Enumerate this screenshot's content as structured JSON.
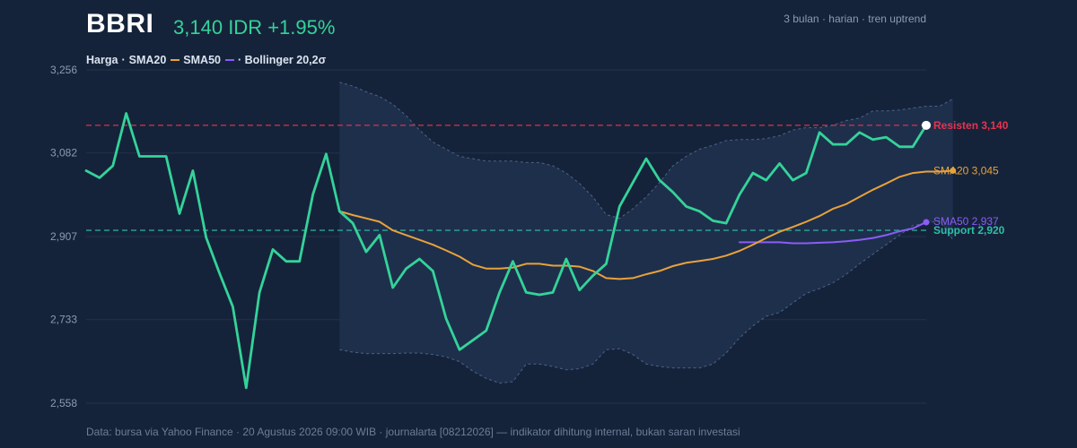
{
  "header": {
    "ticker": "BBRI",
    "price": "3,140",
    "currency": "IDR",
    "change": "+1.95%",
    "subtitle": "3 bulan · harian · tren uptrend"
  },
  "legend": {
    "price": "Harga",
    "sma20": "SMA20",
    "sma50": "SMA50",
    "bollinger": "· Bollinger 20,2σ"
  },
  "footer": "Data: bursa via Yahoo Finance · 20 Agustus 2026 09:00 WIB · journalarta [08212026] — indikator dihitung internal, bukan saran investasi",
  "colors": {
    "background": "#15233a",
    "price": "#34d399",
    "sma20": "#e8a23a",
    "sma50": "#8b5cf6",
    "bollinger_band": "#1e2f4c",
    "bollinger_edge": "#4d6288",
    "resistance": "#e5344f",
    "support": "#2dbfa4"
  },
  "chart_data": {
    "type": "line",
    "ylim": [
      2558,
      3256
    ],
    "y_ticks": [
      2558,
      2733,
      2907,
      3082,
      3256
    ],
    "y_tick_labels": [
      "2,558",
      "2,733",
      "2,907",
      "3,082",
      "3,256"
    ],
    "n_days": 64,
    "series": [
      {
        "name": "Harga",
        "start_index": 0,
        "values": [
          3045,
          3030,
          3055,
          3165,
          3075,
          3075,
          3075,
          2955,
          3045,
          2905,
          2830,
          2760,
          2590,
          2790,
          2880,
          2855,
          2855,
          2995,
          3080,
          2960,
          2935,
          2875,
          2910,
          2800,
          2840,
          2860,
          2835,
          2735,
          2670,
          2690,
          2710,
          2790,
          2855,
          2790,
          2785,
          2790,
          2860,
          2795,
          2825,
          2850,
          2970,
          3020,
          3070,
          3025,
          3000,
          2970,
          2960,
          2940,
          2935,
          2995,
          3040,
          3025,
          3060,
          3025,
          3040,
          3125,
          3100,
          3100,
          3125,
          3110,
          3115,
          3095,
          3095,
          3140
        ]
      },
      {
        "name": "SMA20",
        "start_index": 19,
        "values": [
          2960,
          2952,
          2945,
          2938,
          2920,
          2910,
          2900,
          2890,
          2878,
          2865,
          2848,
          2840,
          2840,
          2842,
          2850,
          2850,
          2846,
          2846,
          2844,
          2835,
          2820,
          2818,
          2820,
          2828,
          2835,
          2845,
          2852,
          2856,
          2860,
          2867,
          2877,
          2890,
          2904,
          2917,
          2927,
          2938,
          2950,
          2965,
          2975,
          2990,
          3005,
          3018,
          3032,
          3040,
          3043,
          3043,
          3045
        ]
      },
      {
        "name": "SMA50",
        "start_index": 49,
        "values": [
          2895,
          2895,
          2895,
          2895,
          2893,
          2893,
          2894,
          2895,
          2897,
          2900,
          2904,
          2910,
          2918,
          2924,
          2937
        ]
      }
    ],
    "bollinger": {
      "start_index": 19,
      "upper": [
        3230,
        3222,
        3210,
        3200,
        3184,
        3160,
        3130,
        3105,
        3090,
        3075,
        3070,
        3065,
        3065,
        3065,
        3062,
        3062,
        3055,
        3040,
        3018,
        2990,
        2953,
        2945,
        2965,
        2990,
        3020,
        3055,
        3075,
        3090,
        3098,
        3108,
        3110,
        3110,
        3112,
        3118,
        3130,
        3135,
        3135,
        3140,
        3150,
        3155,
        3170,
        3170,
        3172,
        3176,
        3180,
        3180,
        3195
      ],
      "lower": [
        2670,
        2665,
        2662,
        2662,
        2662,
        2663,
        2663,
        2660,
        2655,
        2645,
        2625,
        2610,
        2600,
        2603,
        2640,
        2640,
        2635,
        2628,
        2630,
        2640,
        2670,
        2672,
        2660,
        2640,
        2635,
        2632,
        2632,
        2632,
        2640,
        2663,
        2695,
        2720,
        2740,
        2748,
        2768,
        2788,
        2798,
        2810,
        2828,
        2850,
        2870,
        2890,
        2910,
        2930,
        2935,
        2940,
        2900
      ]
    },
    "levels": [
      {
        "name": "Resisten",
        "value": 3140,
        "label": "Resisten 3,140"
      },
      {
        "name": "Support",
        "value": 2920,
        "label": "Support 2,920"
      }
    ],
    "end_labels": {
      "sma20": "SMA20 3,045",
      "sma50": "SMA50 2,937"
    },
    "grid": true,
    "legend_position": "top-left"
  }
}
